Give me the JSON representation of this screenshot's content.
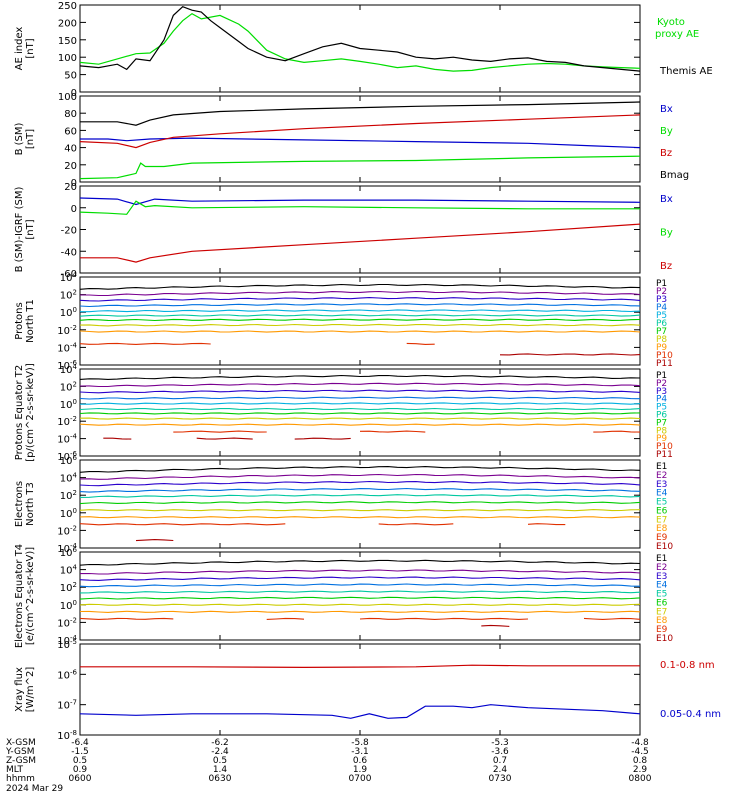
{
  "chart_data": [
    {
      "type": "line",
      "ylabel": "AE index [nT]",
      "ylim": [
        0,
        250
      ],
      "ytick_labels": [
        "0",
        "50",
        "100",
        "150",
        "200",
        "250"
      ],
      "series": [
        {
          "name": "Kyoto proxy AE",
          "color": "#00dd00",
          "x": [
            0,
            4,
            8,
            12,
            15,
            18,
            20,
            22,
            24,
            26,
            30,
            34,
            36,
            40,
            44,
            48,
            52,
            56,
            60,
            64,
            68,
            72,
            76,
            80,
            84,
            88,
            92,
            96,
            100,
            104,
            108,
            112,
            116,
            120
          ],
          "y": [
            85,
            80,
            95,
            110,
            112,
            140,
            175,
            205,
            225,
            210,
            220,
            195,
            175,
            120,
            95,
            85,
            90,
            95,
            88,
            80,
            70,
            75,
            65,
            60,
            62,
            70,
            75,
            80,
            82,
            80,
            75,
            72,
            70,
            68
          ]
        },
        {
          "name": "Themis AE",
          "color": "#000000",
          "x": [
            0,
            4,
            8,
            10,
            12,
            15,
            18,
            20,
            22,
            24,
            26,
            28,
            30,
            34,
            36,
            40,
            44,
            48,
            52,
            56,
            60,
            64,
            68,
            72,
            76,
            80,
            84,
            88,
            92,
            96,
            100,
            104,
            108,
            112,
            116,
            120
          ],
          "y": [
            75,
            70,
            80,
            65,
            95,
            90,
            150,
            220,
            245,
            235,
            230,
            205,
            185,
            145,
            125,
            100,
            90,
            110,
            130,
            140,
            125,
            120,
            115,
            100,
            95,
            100,
            92,
            88,
            95,
            98,
            88,
            85,
            75,
            70,
            65,
            60
          ]
        }
      ]
    },
    {
      "type": "line",
      "ylabel": "B (SM) [nT]",
      "ylim": [
        0,
        100
      ],
      "ytick_labels": [
        "0",
        "20",
        "40",
        "60",
        "80",
        "100"
      ],
      "series": [
        {
          "name": "Bx",
          "color": "#0000cc",
          "x": [
            0,
            6,
            10,
            15,
            24,
            48,
            72,
            96,
            110,
            120
          ],
          "y": [
            50,
            50,
            48,
            50,
            51,
            49,
            47,
            45,
            42,
            40
          ]
        },
        {
          "name": "By",
          "color": "#00dd00",
          "x": [
            0,
            8,
            12,
            13,
            14,
            18,
            24,
            48,
            72,
            96,
            120
          ],
          "y": [
            4,
            5,
            10,
            22,
            18,
            18,
            22,
            24,
            25,
            28,
            30
          ]
        },
        {
          "name": "Bz",
          "color": "#cc0000",
          "x": [
            0,
            8,
            12,
            15,
            20,
            30,
            48,
            72,
            96,
            120
          ],
          "y": [
            47,
            45,
            40,
            46,
            52,
            56,
            62,
            68,
            73,
            78
          ]
        },
        {
          "name": "Bmag",
          "color": "#000000",
          "x": [
            0,
            8,
            12,
            15,
            20,
            30,
            48,
            72,
            96,
            120
          ],
          "y": [
            70,
            70,
            66,
            72,
            78,
            82,
            85,
            88,
            90,
            93
          ]
        }
      ]
    },
    {
      "type": "line",
      "ylabel": "B (SM)-IGRF (SM) [nT]",
      "ylim": [
        -60,
        20
      ],
      "ytick_labels": [
        "-60",
        "-40",
        "-20",
        "0",
        "20"
      ],
      "series": [
        {
          "name": "Bx",
          "color": "#0000cc",
          "x": [
            0,
            8,
            12,
            16,
            24,
            48,
            72,
            96,
            120
          ],
          "y": [
            9,
            8,
            3,
            8,
            6,
            7,
            7,
            6,
            5
          ]
        },
        {
          "name": "By",
          "color": "#00dd00",
          "x": [
            0,
            6,
            10,
            12,
            14,
            16,
            24,
            48,
            72,
            96,
            120
          ],
          "y": [
            -4,
            -5,
            -6,
            6,
            1,
            2,
            0,
            1,
            0,
            -1,
            -1
          ]
        },
        {
          "name": "Bz",
          "color": "#cc0000",
          "x": [
            0,
            8,
            12,
            15,
            24,
            48,
            72,
            96,
            120
          ],
          "y": [
            -46,
            -46,
            -50,
            -46,
            -40,
            -34,
            -28,
            -22,
            -15
          ]
        }
      ]
    },
    {
      "type": "line",
      "ylabel": "Protons North T1",
      "yscale": "log",
      "ylim_exp": [
        -6,
        4
      ],
      "ytick_labels": [
        "10^-6",
        "10^-4",
        "10^-2",
        "10^0",
        "10^2",
        "10^4"
      ],
      "channels": [
        {
          "name": "P1",
          "color": "#000000",
          "level": 2.6,
          "bump": 0.5
        },
        {
          "name": "P2",
          "color": "#7a0090",
          "level": 1.9,
          "bump": 0.4
        },
        {
          "name": "P3",
          "color": "#2a00cc",
          "level": 1.3,
          "bump": 0.3
        },
        {
          "name": "P4",
          "color": "#0070e0",
          "level": 0.7,
          "bump": 0.2
        },
        {
          "name": "P5",
          "color": "#00b0e0",
          "level": 0.1,
          "bump": 0.1
        },
        {
          "name": "P6",
          "color": "#00c8a0",
          "level": -0.4,
          "bump": 0.05
        },
        {
          "name": "P7",
          "color": "#00cc00",
          "level": -0.9,
          "bump": 0.05
        },
        {
          "name": "P8",
          "color": "#cccc00",
          "level": -1.5,
          "bump": 0.05
        },
        {
          "name": "P9",
          "color": "#ff9900",
          "level": -2.2,
          "bump": 0
        },
        {
          "name": "P10",
          "color": "#e03000",
          "level": -3.6,
          "bump": 0,
          "segments": [
            [
              0,
              28
            ],
            [
              70,
              76
            ]
          ]
        },
        {
          "name": "P11",
          "color": "#aa0000",
          "level": -4.8,
          "bump": 0,
          "segments": [
            [
              90,
              120
            ]
          ]
        }
      ]
    },
    {
      "type": "line",
      "ylabel": "Protons Equator T2 [p/(cm^2-s-sr-keV)]",
      "yscale": "log",
      "ylim_exp": [
        -6,
        4
      ],
      "ytick_labels": [
        "10^-6",
        "10^-4",
        "10^-2",
        "10^0",
        "10^2",
        "10^4"
      ],
      "channels": [
        {
          "name": "P1",
          "color": "#000000",
          "level": 2.8,
          "bump": 0.4
        },
        {
          "name": "P2",
          "color": "#7a0090",
          "level": 2.0,
          "bump": 0.3
        },
        {
          "name": "P3",
          "color": "#2a00cc",
          "level": 1.3,
          "bump": 0.2
        },
        {
          "name": "P4",
          "color": "#0070e0",
          "level": 0.6,
          "bump": 0.1
        },
        {
          "name": "P5",
          "color": "#00b0e0",
          "level": 0.0,
          "bump": 0.05
        },
        {
          "name": "P6",
          "color": "#00c8a0",
          "level": -0.6,
          "bump": 0
        },
        {
          "name": "P7",
          "color": "#00cc00",
          "level": -1.1,
          "bump": 0
        },
        {
          "name": "P8",
          "color": "#cccc00",
          "level": -1.7,
          "bump": 0
        },
        {
          "name": "P9",
          "color": "#ff9900",
          "level": -2.4,
          "bump": 0
        },
        {
          "name": "P10",
          "color": "#e03000",
          "level": -3.2,
          "bump": 0,
          "segments": [
            [
              20,
              40
            ],
            [
              60,
              75
            ],
            [
              110,
              120
            ]
          ]
        },
        {
          "name": "P11",
          "color": "#aa0000",
          "level": -4.0,
          "bump": 0,
          "segments": [
            [
              5,
              12
            ],
            [
              25,
              38
            ],
            [
              46,
              58
            ]
          ]
        }
      ]
    },
    {
      "type": "line",
      "ylabel": "Electrons North T3",
      "yscale": "log",
      "ylim_exp": [
        -4,
        6
      ],
      "ytick_labels": [
        "10^-4",
        "10^-2",
        "10^0",
        "10^2",
        "10^4",
        "10^6"
      ],
      "channels": [
        {
          "name": "E1",
          "color": "#000000",
          "level": 4.6,
          "bump": 0.6
        },
        {
          "name": "E2",
          "color": "#7a0090",
          "level": 3.8,
          "bump": 0.5
        },
        {
          "name": "E3",
          "color": "#2a00cc",
          "level": 3.1,
          "bump": 0.4
        },
        {
          "name": "E4",
          "color": "#0070e0",
          "level": 2.4,
          "bump": 0.3
        },
        {
          "name": "E5",
          "color": "#00c8a0",
          "level": 1.8,
          "bump": 0.2
        },
        {
          "name": "E6",
          "color": "#00cc00",
          "level": 1.1,
          "bump": 0.1
        },
        {
          "name": "E7",
          "color": "#cccc00",
          "level": 0.3,
          "bump": 0
        },
        {
          "name": "E8",
          "color": "#ff9900",
          "level": -0.5,
          "bump": 0
        },
        {
          "name": "E9",
          "color": "#e03000",
          "level": -1.3,
          "bump": 0,
          "segments": [
            [
              0,
              44
            ],
            [
              64,
              80
            ],
            [
              96,
              104
            ]
          ]
        },
        {
          "name": "E10",
          "color": "#aa0000",
          "level": -3.1,
          "bump": 0,
          "segments": [
            [
              12,
              20
            ]
          ]
        }
      ]
    },
    {
      "type": "line",
      "ylabel": "Electrons Equator T4 [e/(cm^2-s-sr-keV)]",
      "yscale": "log",
      "ylim_exp": [
        -4,
        6
      ],
      "ytick_labels": [
        "10^-4",
        "10^-2",
        "10^0",
        "10^2",
        "10^4",
        "10^6"
      ],
      "channels": [
        {
          "name": "E1",
          "color": "#000000",
          "level": 4.5,
          "bump": 0.5
        },
        {
          "name": "E2",
          "color": "#7a0090",
          "level": 3.5,
          "bump": 0.4
        },
        {
          "name": "E3",
          "color": "#2a00cc",
          "level": 2.8,
          "bump": 0.3
        },
        {
          "name": "E4",
          "color": "#0070e0",
          "level": 2.1,
          "bump": 0.2
        },
        {
          "name": "E5",
          "color": "#00c8a0",
          "level": 1.4,
          "bump": 0.1
        },
        {
          "name": "E6",
          "color": "#00cc00",
          "level": 0.7,
          "bump": 0.1
        },
        {
          "name": "E7",
          "color": "#cccc00",
          "level": 0.0,
          "bump": 0
        },
        {
          "name": "E8",
          "color": "#ff9900",
          "level": -0.8,
          "bump": 0
        },
        {
          "name": "E9",
          "color": "#e03000",
          "level": -1.6,
          "bump": 0,
          "segments": [
            [
              0,
              20
            ],
            [
              40,
              48
            ],
            [
              60,
              96
            ],
            [
              108,
              120
            ]
          ]
        },
        {
          "name": "E10",
          "color": "#aa0000",
          "level": -2.4,
          "bump": 0,
          "segments": [
            [
              86,
              92
            ]
          ]
        }
      ]
    },
    {
      "type": "line",
      "ylabel": "Xray flux [W/m^2]",
      "yscale": "log",
      "ylim_exp": [
        -8,
        -5
      ],
      "ytick_labels": [
        "10^-8",
        "10^-7",
        "10^-6",
        "10^-5"
      ],
      "series": [
        {
          "name": "0.1-0.8 nm",
          "color": "#cc0000",
          "x": [
            0,
            24,
            48,
            72,
            84,
            96,
            120
          ],
          "y": [
            -5.75,
            -5.75,
            -5.77,
            -5.75,
            -5.7,
            -5.72,
            -5.72
          ]
        },
        {
          "name": "0.05-0.4 nm",
          "color": "#0000cc",
          "x": [
            0,
            12,
            24,
            40,
            54,
            58,
            62,
            66,
            70,
            74,
            80,
            84,
            88,
            96,
            104,
            112,
            120
          ],
          "y": [
            -7.3,
            -7.35,
            -7.3,
            -7.3,
            -7.35,
            -7.45,
            -7.3,
            -7.45,
            -7.42,
            -7.05,
            -7.05,
            -7.1,
            -7.0,
            -7.1,
            -7.15,
            -7.2,
            -7.3
          ]
        }
      ]
    }
  ],
  "x_axis": {
    "unit": "minutes after 0600",
    "xlim": [
      0,
      120
    ],
    "ticks": [
      0,
      30,
      60,
      90,
      120
    ],
    "rows": [
      {
        "label": "X-GSM",
        "values": [
          "-6.4",
          "-6.2",
          "-5.8",
          "-5.3",
          "-4.8"
        ]
      },
      {
        "label": "Y-GSM",
        "values": [
          "-1.5",
          "-2.4",
          "-3.1",
          "-3.6",
          "-4.5"
        ]
      },
      {
        "label": "Z-GSM",
        "values": [
          "0.5",
          "0.5",
          "0.6",
          "0.7",
          "0.8"
        ]
      },
      {
        "label": "MLT",
        "values": [
          "0.9",
          "1.4",
          "1.9",
          "2.4",
          "2.9"
        ]
      },
      {
        "label": "hhmm",
        "values": [
          "0600",
          "0630",
          "0700",
          "0730",
          "0800"
        ]
      }
    ],
    "date": "2024 Mar 29"
  }
}
